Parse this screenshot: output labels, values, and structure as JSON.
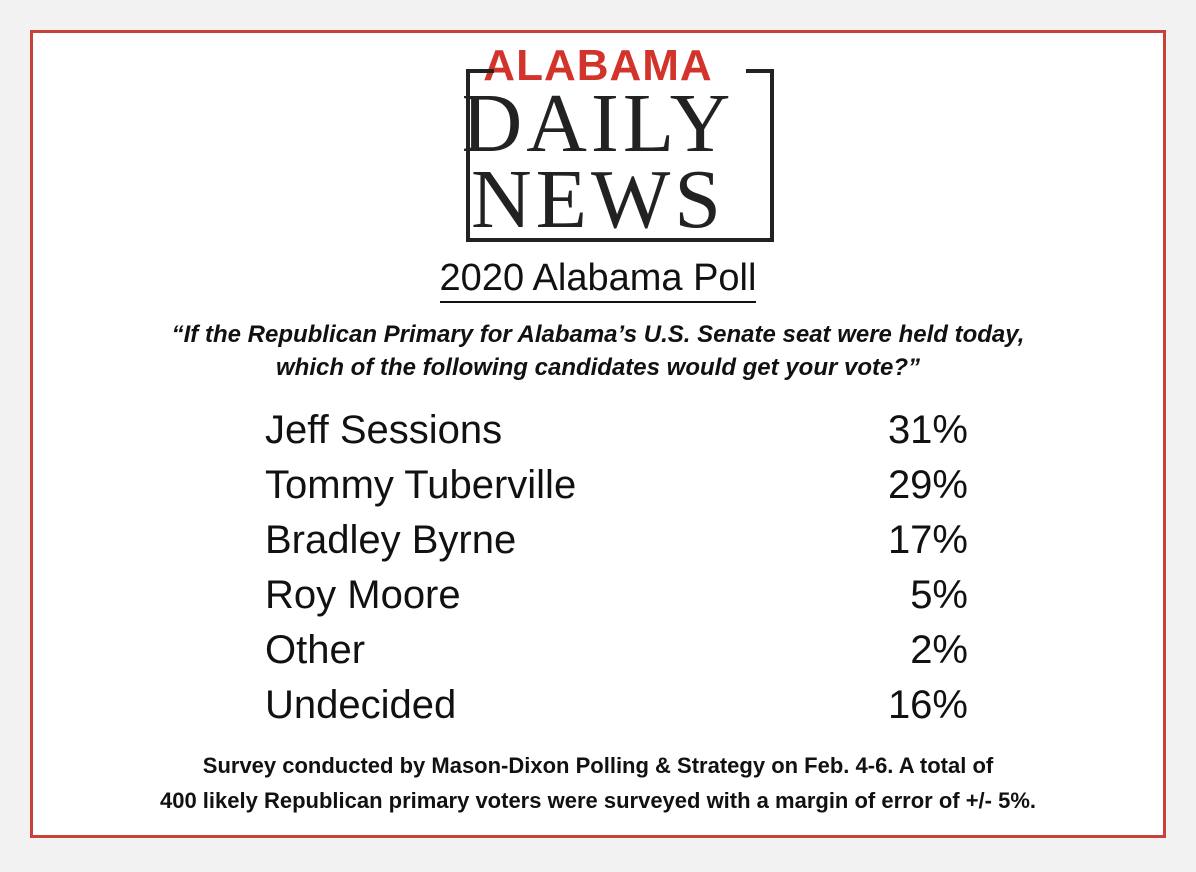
{
  "logo": {
    "top": "ALABAMA",
    "middle": "DAILY",
    "bottom": "NEWS"
  },
  "title": "2020 Alabama Poll",
  "question": [
    "“If the Republican Primary for Alabama’s U.S. Senate seat were held today,",
    "which of the following candidates would get your vote?”"
  ],
  "table": {
    "rows": [
      [
        "Jeff Sessions",
        "31%"
      ],
      [
        "Tommy Tuberville",
        "29%"
      ],
      [
        "Bradley Byrne",
        "17%"
      ],
      [
        "Roy Moore",
        "5%"
      ],
      [
        "Other",
        "2%"
      ],
      [
        "Undecided",
        "16%"
      ]
    ]
  },
  "footnote": [
    "Survey conducted by Mason-Dixon Polling & Strategy on Feb. 4-6.  A total of",
    "400 likely Republican primary voters were surveyed with a margin of error of +/- 5%."
  ]
}
